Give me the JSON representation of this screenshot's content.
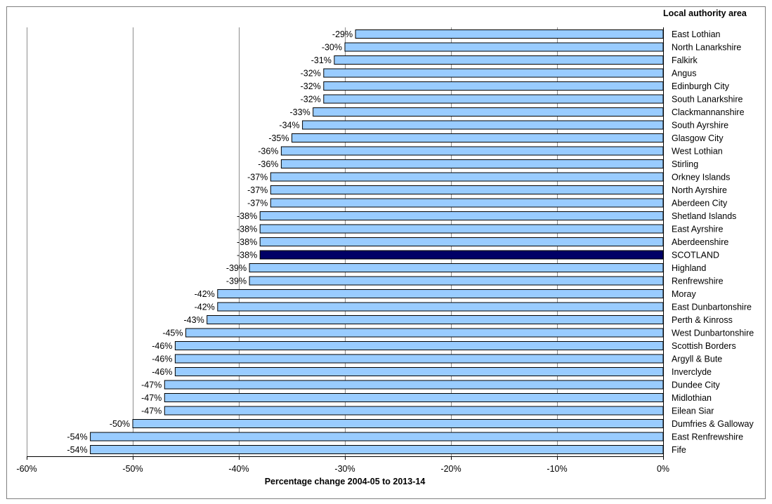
{
  "chart_data": {
    "type": "bar",
    "orientation": "horizontal",
    "xlabel": "Percentage change 2004-05 to 2013-14",
    "category_axis_title": "Local authority area",
    "xlim": [
      -60,
      0
    ],
    "xticks": [
      -60,
      -50,
      -40,
      -30,
      -20,
      -10,
      0
    ],
    "xtick_labels": [
      "-60%",
      "-50%",
      "-40%",
      "-30%",
      "-20%",
      "-10%",
      "0%"
    ],
    "grid": "vertical",
    "colors": {
      "bar": "#99ccff",
      "highlight": "#000066"
    },
    "highlight": "SCOTLAND",
    "categories": [
      "East Lothian",
      "North Lanarkshire",
      "Falkirk",
      "Angus",
      "Edinburgh City",
      "South Lanarkshire",
      "Clackmannanshire",
      "South Ayrshire",
      "Glasgow City",
      "West Lothian",
      "Stirling",
      "Orkney Islands",
      "North Ayrshire",
      "Aberdeen City",
      "Shetland Islands",
      "East Ayrshire",
      "Aberdeenshire",
      "SCOTLAND",
      "Highland",
      "Renfrewshire",
      "Moray",
      "East Dunbartonshire",
      "Perth & Kinross",
      "West Dunbartonshire",
      "Scottish Borders",
      "Argyll & Bute",
      "Inverclyde",
      "Dundee City",
      "Midlothian",
      "Eilean Siar",
      "Dumfries & Galloway",
      "East Renfrewshire",
      "Fife"
    ],
    "values": [
      -29,
      -30,
      -31,
      -32,
      -32,
      -32,
      -33,
      -34,
      -35,
      -36,
      -36,
      -37,
      -37,
      -37,
      -38,
      -38,
      -38,
      -38,
      -39,
      -39,
      -42,
      -42,
      -43,
      -45,
      -46,
      -46,
      -46,
      -47,
      -47,
      -47,
      -50,
      -54,
      -54
    ],
    "value_labels": [
      "-29%",
      "-30%",
      "-31%",
      "-32%",
      "-32%",
      "-32%",
      "-33%",
      "-34%",
      "-35%",
      "-36%",
      "-36%",
      "-37%",
      "-37%",
      "-37%",
      "-38%",
      "-38%",
      "-38%",
      "-38%",
      "-39%",
      "-39%",
      "-42%",
      "-42%",
      "-43%",
      "-45%",
      "-46%",
      "-46%",
      "-46%",
      "-47%",
      "-47%",
      "-47%",
      "-50%",
      "-54%",
      "-54%"
    ]
  }
}
